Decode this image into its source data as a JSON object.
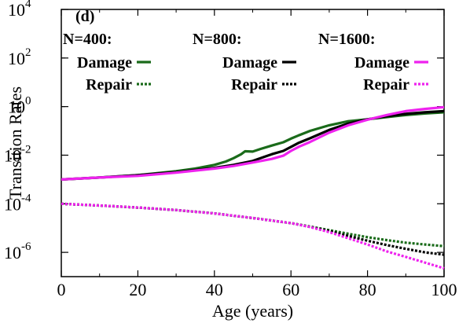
{
  "chart_data": {
    "type": "line",
    "panel_label": "(d)",
    "xlabel": "Age (years)",
    "ylabel": "Transition Rates",
    "xlim": [
      0,
      100
    ],
    "ylim_log10": [
      -7,
      4
    ],
    "yscale": "log",
    "x_ticks": [
      0,
      20,
      40,
      60,
      80,
      100
    ],
    "y_ticks": [
      {
        "base": "10",
        "exp": "4",
        "log": 4
      },
      {
        "base": "10",
        "exp": "2",
        "log": 2
      },
      {
        "base": "10",
        "exp": "0",
        "log": 0
      },
      {
        "base": "10",
        "exp": "-2",
        "log": -2
      },
      {
        "base": "10",
        "exp": "-4",
        "log": -4
      },
      {
        "base": "10",
        "exp": "-6",
        "log": -6
      }
    ],
    "legend_placement": "top",
    "legend_groups": [
      {
        "title": "N=400:",
        "damage_label": "Damage",
        "repair_label": "Repair",
        "color": "#1a6b1a"
      },
      {
        "title": "N=800:",
        "damage_label": "Damage",
        "repair_label": "Repair",
        "color": "#000000"
      },
      {
        "title": "N=1600:",
        "damage_label": "Damage",
        "repair_label": "Repair",
        "color": "#ee22ee"
      }
    ],
    "series": [
      {
        "group": 0,
        "kind": "damage",
        "color": "#1a6b1a",
        "x": [
          0,
          10,
          20,
          30,
          35,
          40,
          43,
          45,
          47,
          48,
          50,
          52,
          55,
          58,
          60,
          62,
          65,
          70,
          75,
          80,
          85,
          90,
          95,
          100
        ],
        "y": [
          0.001,
          0.0012,
          0.0015,
          0.0022,
          0.0028,
          0.004,
          0.0055,
          0.0075,
          0.011,
          0.0145,
          0.014,
          0.018,
          0.025,
          0.034,
          0.048,
          0.065,
          0.1,
          0.17,
          0.25,
          0.3,
          0.37,
          0.45,
          0.52,
          0.58
        ]
      },
      {
        "group": 1,
        "kind": "damage",
        "color": "#000000",
        "x": [
          0,
          10,
          20,
          30,
          40,
          45,
          50,
          53,
          55,
          58,
          60,
          62,
          65,
          70,
          75,
          80,
          85,
          90,
          95,
          100
        ],
        "y": [
          0.001,
          0.0012,
          0.0015,
          0.002,
          0.003,
          0.004,
          0.0058,
          0.0085,
          0.011,
          0.015,
          0.022,
          0.032,
          0.05,
          0.11,
          0.2,
          0.3,
          0.4,
          0.5,
          0.58,
          0.65
        ]
      },
      {
        "group": 2,
        "kind": "damage",
        "color": "#ee22ee",
        "x": [
          0,
          10,
          20,
          30,
          40,
          45,
          50,
          55,
          58,
          60,
          62,
          65,
          70,
          75,
          80,
          85,
          90,
          95,
          100
        ],
        "y": [
          0.001,
          0.0012,
          0.0014,
          0.0019,
          0.0028,
          0.0036,
          0.005,
          0.007,
          0.0095,
          0.015,
          0.022,
          0.035,
          0.085,
          0.17,
          0.29,
          0.45,
          0.65,
          0.8,
          0.95
        ]
      },
      {
        "group": 0,
        "kind": "repair",
        "color": "#1a6b1a",
        "x": [
          0,
          10,
          20,
          30,
          40,
          50,
          60,
          65,
          70,
          75,
          80,
          85,
          90,
          95,
          100
        ],
        "y": [
          0.0001,
          8.5e-05,
          7e-05,
          5.5e-05,
          4e-05,
          2.6e-05,
          1.6e-05,
          1.15e-05,
          8.2e-06,
          5.8e-06,
          4.2e-06,
          3.2e-06,
          2.5e-06,
          2.1e-06,
          1.8e-06
        ]
      },
      {
        "group": 1,
        "kind": "repair",
        "color": "#000000",
        "x": [
          0,
          10,
          20,
          30,
          40,
          50,
          60,
          65,
          70,
          75,
          80,
          85,
          90,
          95,
          100
        ],
        "y": [
          0.0001,
          8.5e-05,
          7e-05,
          5.5e-05,
          4e-05,
          2.6e-05,
          1.6e-05,
          1.12e-05,
          7.5e-06,
          4.7e-06,
          3e-06,
          2e-06,
          1.4e-06,
          1e-06,
          8e-07
        ]
      },
      {
        "group": 2,
        "kind": "repair",
        "color": "#ee22ee",
        "x": [
          0,
          10,
          20,
          30,
          40,
          50,
          60,
          65,
          70,
          75,
          80,
          85,
          90,
          95,
          100
        ],
        "y": [
          0.0001,
          8.5e-05,
          7e-05,
          5.5e-05,
          4e-05,
          2.6e-05,
          1.6e-05,
          1.1e-05,
          6.8e-06,
          3.8e-06,
          2.1e-06,
          1.1e-06,
          6.5e-07,
          3.8e-07,
          2.2e-07
        ]
      }
    ]
  }
}
